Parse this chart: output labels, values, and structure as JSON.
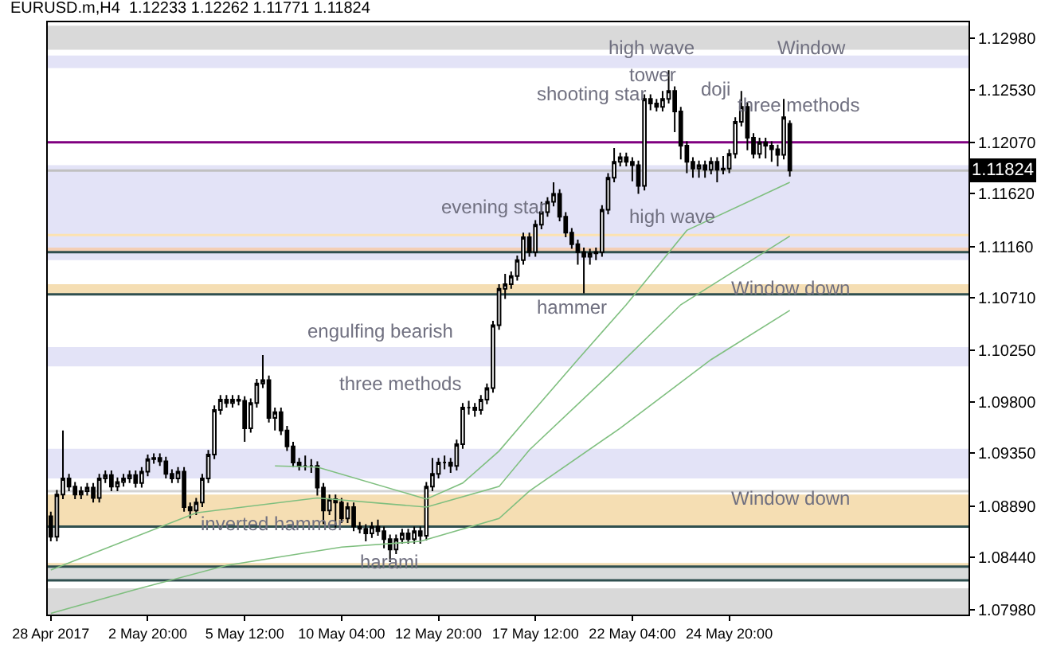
{
  "chart_data": {
    "type": "candlestick",
    "title": "EURUSD.m,H4  1.12233 1.12262 1.11771 1.11824",
    "categories": [
      "28 Apr 2017",
      null,
      null,
      null,
      null,
      null,
      null,
      null,
      null,
      null,
      null,
      null,
      null,
      null,
      null,
      null,
      "2 May 20:00",
      null,
      null,
      null,
      null,
      null,
      null,
      null,
      null,
      null,
      null,
      null,
      null,
      null,
      null,
      null,
      "5 May 12:00",
      null,
      null,
      null,
      null,
      null,
      null,
      null,
      null,
      null,
      null,
      null,
      null,
      null,
      null,
      null,
      "10 May 04:00",
      null,
      null,
      null,
      null,
      null,
      null,
      null,
      null,
      null,
      null,
      null,
      null,
      null,
      null,
      null,
      "12 May 20:00",
      null,
      null,
      null,
      null,
      null,
      null,
      null,
      null,
      null,
      null,
      null,
      null,
      null,
      null,
      null,
      "17 May 12:00",
      null,
      null,
      null,
      null,
      null,
      null,
      null,
      null,
      null,
      null,
      null,
      null,
      null,
      null,
      null,
      "22 May 04:00",
      null,
      null,
      null,
      null,
      null,
      null,
      null,
      null,
      null,
      null,
      null,
      null,
      null,
      null,
      null,
      "24 May 20:00",
      null,
      null,
      null,
      null,
      null,
      null,
      null,
      null,
      null,
      null,
      null,
      null,
      null,
      null,
      null,
      null,
      null,
      null,
      null,
      null,
      null,
      null,
      null,
      null,
      null,
      null,
      null,
      null,
      null,
      null,
      null,
      null,
      null,
      null,
      null,
      null,
      null,
      null,
      null
    ],
    "ohlc": [
      [
        1.088,
        1.0884,
        1.0858,
        1.0862
      ],
      [
        1.0862,
        1.0903,
        1.0858,
        1.0899
      ],
      [
        1.0899,
        1.0955,
        1.0895,
        1.0913
      ],
      [
        1.0913,
        1.0917,
        1.0902,
        1.0906
      ],
      [
        1.0906,
        1.091,
        1.0895,
        1.0899
      ],
      [
        1.0899,
        1.0906,
        1.0895,
        1.0902
      ],
      [
        1.0902,
        1.0909,
        1.0898,
        1.0905
      ],
      [
        1.0905,
        1.0909,
        1.0892,
        1.0896
      ],
      [
        1.0896,
        1.0917,
        1.0892,
        1.0913
      ],
      [
        1.0913,
        1.092,
        1.0909,
        1.0916
      ],
      [
        1.0916,
        1.092,
        1.0902,
        1.0906
      ],
      [
        1.0906,
        1.0914,
        1.0902,
        1.091
      ],
      [
        1.091,
        1.0917,
        1.0906,
        1.0913
      ],
      [
        1.0913,
        1.092,
        1.0909,
        1.0916
      ],
      [
        1.0916,
        1.092,
        1.0905,
        1.0909
      ],
      [
        1.0909,
        1.0923,
        1.0905,
        1.0919
      ],
      [
        1.0919,
        1.0934,
        1.0915,
        1.093
      ],
      [
        1.093,
        1.0935,
        1.0926,
        1.0931
      ],
      [
        1.0931,
        1.0935,
        1.0924,
        1.0928
      ],
      [
        1.0928,
        1.0932,
        1.0913,
        1.0917
      ],
      [
        1.0917,
        1.0921,
        1.0909,
        1.0913
      ],
      [
        1.0913,
        1.0923,
        1.0909,
        1.0919
      ],
      [
        1.0919,
        1.0923,
        1.0884,
        1.0888
      ],
      [
        1.0888,
        1.0892,
        1.0878,
        1.0885
      ],
      [
        1.0885,
        1.0896,
        1.0881,
        1.0892
      ],
      [
        1.0892,
        1.0917,
        1.0888,
        1.0913
      ],
      [
        1.0913,
        1.0938,
        1.0909,
        1.0934
      ],
      [
        1.0934,
        1.0977,
        1.093,
        1.0973
      ],
      [
        1.0973,
        1.0986,
        1.0969,
        1.0982
      ],
      [
        1.0982,
        1.0986,
        1.0975,
        1.0979
      ],
      [
        1.0979,
        1.0986,
        1.0975,
        1.0982
      ],
      [
        1.0982,
        1.0986,
        1.0977,
        1.0981
      ],
      [
        1.0981,
        1.0985,
        1.0945,
        1.0957
      ],
      [
        1.0957,
        1.0983,
        1.0953,
        1.0979
      ],
      [
        1.0979,
        1.1,
        1.0975,
        1.0996
      ],
      [
        1.0996,
        1.1021,
        1.0992,
        1.0999
      ],
      [
        1.0999,
        1.1003,
        1.0962,
        1.0966
      ],
      [
        1.0966,
        1.0975,
        1.0955,
        1.0971
      ],
      [
        1.0971,
        1.0975,
        1.0951,
        1.0955
      ],
      [
        1.0955,
        1.0959,
        1.0937,
        1.0941
      ],
      [
        1.0941,
        1.0945,
        1.0923,
        1.0927
      ],
      [
        1.0927,
        1.0931,
        1.092,
        1.0924
      ],
      [
        1.0924,
        1.0933,
        1.092,
        1.0924
      ],
      [
        1.0924,
        1.093,
        1.0918,
        1.0924
      ],
      [
        1.0924,
        1.0928,
        1.0898,
        1.0905
      ],
      [
        1.0905,
        1.0909,
        1.0873,
        1.0885
      ],
      [
        1.0885,
        1.0899,
        1.0881,
        1.0895
      ],
      [
        1.0895,
        1.0899,
        1.087,
        1.0892
      ],
      [
        1.0892,
        1.0896,
        1.0874,
        1.0878
      ],
      [
        1.0878,
        1.0892,
        1.0874,
        1.0888
      ],
      [
        1.0888,
        1.0892,
        1.0867,
        1.0871
      ],
      [
        1.0871,
        1.0875,
        1.0865,
        1.0869
      ],
      [
        1.0869,
        1.0873,
        1.0858,
        1.0865
      ],
      [
        1.0865,
        1.0875,
        1.0861,
        1.0871
      ],
      [
        1.0871,
        1.0877,
        1.0863,
        1.0867
      ],
      [
        1.0867,
        1.0871,
        1.0852,
        1.086
      ],
      [
        1.086,
        1.0864,
        1.084,
        1.0851
      ],
      [
        1.0851,
        1.0864,
        1.0847,
        1.086
      ],
      [
        1.086,
        1.0869,
        1.0856,
        1.0865
      ],
      [
        1.0865,
        1.0869,
        1.0856,
        1.086
      ],
      [
        1.086,
        1.0871,
        1.0856,
        1.0867
      ],
      [
        1.0867,
        1.0871,
        1.0856,
        1.0863
      ],
      [
        1.0863,
        1.091,
        1.0859,
        1.0906
      ],
      [
        1.0906,
        1.0931,
        1.0902,
        1.0917
      ],
      [
        1.0917,
        1.0931,
        1.0913,
        1.0927
      ],
      [
        1.0927,
        1.0933,
        1.0921,
        1.0927
      ],
      [
        1.0927,
        1.0931,
        1.0918,
        1.0924
      ],
      [
        1.0924,
        1.0947,
        1.092,
        1.0943
      ],
      [
        1.0943,
        1.0979,
        1.0939,
        1.0975
      ],
      [
        1.0975,
        1.0981,
        1.0969,
        1.0975
      ],
      [
        1.0975,
        1.0979,
        1.0967,
        1.0973
      ],
      [
        1.0973,
        1.0986,
        1.0969,
        1.0982
      ],
      [
        1.0982,
        1.0996,
        1.0978,
        1.0992
      ],
      [
        1.0992,
        1.1051,
        1.0988,
        1.1047
      ],
      [
        1.1047,
        1.1083,
        1.1043,
        1.1079
      ],
      [
        1.1079,
        1.1092,
        1.107,
        1.1083
      ],
      [
        1.1083,
        1.1094,
        1.1079,
        1.109
      ],
      [
        1.109,
        1.1108,
        1.1086,
        1.1104
      ],
      [
        1.1104,
        1.1128,
        1.11,
        1.1124
      ],
      [
        1.1124,
        1.1128,
        1.1107,
        1.1111
      ],
      [
        1.1111,
        1.1139,
        1.1107,
        1.1135
      ],
      [
        1.1135,
        1.1155,
        1.1131,
        1.1146
      ],
      [
        1.1146,
        1.1159,
        1.1142,
        1.1155
      ],
      [
        1.1155,
        1.1172,
        1.1151,
        1.1162
      ],
      [
        1.1162,
        1.1166,
        1.1138,
        1.1142
      ],
      [
        1.1142,
        1.1146,
        1.1124,
        1.1128
      ],
      [
        1.1128,
        1.1132,
        1.1114,
        1.1118
      ],
      [
        1.1118,
        1.1122,
        1.11,
        1.1111
      ],
      [
        1.1111,
        1.1115,
        1.1075,
        1.1107
      ],
      [
        1.1107,
        1.1114,
        1.11,
        1.111
      ],
      [
        1.111,
        1.1115,
        1.1104,
        1.1111
      ],
      [
        1.1111,
        1.1152,
        1.1107,
        1.1148
      ],
      [
        1.1148,
        1.118,
        1.1144,
        1.1176
      ],
      [
        1.1176,
        1.1202,
        1.1172,
        1.119
      ],
      [
        1.119,
        1.1198,
        1.1186,
        1.1194
      ],
      [
        1.1194,
        1.1198,
        1.1186,
        1.119
      ],
      [
        1.119,
        1.1194,
        1.1173,
        1.1187
      ],
      [
        1.1187,
        1.1191,
        1.1162,
        1.1169
      ],
      [
        1.1169,
        1.1249,
        1.1165,
        1.1245
      ],
      [
        1.1245,
        1.1249,
        1.1235,
        1.1241
      ],
      [
        1.1241,
        1.1245,
        1.1234,
        1.1238
      ],
      [
        1.1238,
        1.1252,
        1.1234,
        1.1245
      ],
      [
        1.1245,
        1.127,
        1.1241,
        1.1252
      ],
      [
        1.1252,
        1.1256,
        1.1216,
        1.1234
      ],
      [
        1.1234,
        1.1238,
        1.1192,
        1.1204
      ],
      [
        1.1204,
        1.1208,
        1.118,
        1.119
      ],
      [
        1.119,
        1.1194,
        1.1176,
        1.1184
      ],
      [
        1.1184,
        1.1191,
        1.1176,
        1.1187
      ],
      [
        1.1187,
        1.1191,
        1.1176,
        1.1183
      ],
      [
        1.1183,
        1.1194,
        1.1179,
        1.119
      ],
      [
        1.119,
        1.1194,
        1.1172,
        1.1183
      ],
      [
        1.1183,
        1.1195,
        1.1179,
        1.1184
      ],
      [
        1.1184,
        1.1201,
        1.118,
        1.1197
      ],
      [
        1.1197,
        1.1229,
        1.1193,
        1.1225
      ],
      [
        1.1225,
        1.1252,
        1.1221,
        1.1238
      ],
      [
        1.1238,
        1.1242,
        1.12,
        1.1211
      ],
      [
        1.1211,
        1.1215,
        1.1193,
        1.1197
      ],
      [
        1.1197,
        1.1211,
        1.1193,
        1.1207
      ],
      [
        1.1207,
        1.1211,
        1.1193,
        1.1204
      ],
      [
        1.1204,
        1.1208,
        1.119,
        1.1201
      ],
      [
        1.1201,
        1.1205,
        1.1186,
        1.1196
      ],
      [
        1.1196,
        1.1245,
        1.1192,
        1.1229
      ],
      [
        1.12233,
        1.12262,
        1.11771,
        1.11824
      ],
      null,
      null,
      null,
      null,
      null,
      null,
      null,
      null,
      null,
      null,
      null,
      null,
      null,
      null,
      null,
      null,
      null,
      null,
      null,
      null,
      null,
      null,
      null,
      null,
      null,
      null,
      null,
      null,
      null
    ],
    "series": [
      {
        "type": "line",
        "color": "#7fbf7f",
        "values": [
          null,
          null,
          null,
          null,
          null,
          null,
          null,
          null,
          null,
          null,
          null,
          null,
          null,
          null,
          null,
          null,
          null,
          null,
          null,
          null,
          null,
          null,
          null,
          null,
          null,
          null,
          null,
          null,
          null,
          null,
          null,
          null,
          null,
          null,
          null,
          null,
          null,
          1.0924,
          null,
          null,
          null,
          null,
          null,
          null,
          1.0923,
          null,
          null,
          null,
          null,
          null,
          null,
          null,
          null,
          null,
          null,
          null,
          null,
          null,
          null,
          null,
          null,
          null,
          1.0895,
          null,
          null,
          null,
          null,
          null,
          1.0909,
          null,
          null,
          null,
          null,
          null,
          1.0937,
          null,
          null,
          null,
          null,
          1.0968,
          null,
          null,
          null,
          null,
          null,
          null,
          null,
          1.1017,
          null,
          null,
          null,
          null,
          null,
          null,
          null,
          1.1065,
          null,
          null,
          null,
          null,
          null,
          null,
          null,
          null,
          null,
          1.113,
          null,
          null,
          null,
          null,
          null,
          null,
          null,
          null,
          null,
          null,
          null,
          null,
          null,
          null,
          null,
          null,
          1.1172,
          null,
          null,
          null,
          null,
          null,
          null,
          null,
          null,
          null,
          null,
          null,
          null,
          null,
          null,
          null,
          null,
          null,
          null,
          null,
          null,
          null,
          null,
          null,
          null,
          null,
          null,
          null,
          null,
          null
        ]
      },
      {
        "type": "line",
        "color": "#7fbf7f",
        "values": [
          1.0833,
          null,
          null,
          null,
          null,
          null,
          null,
          null,
          null,
          null,
          null,
          null,
          null,
          null,
          null,
          null,
          null,
          null,
          null,
          null,
          null,
          null,
          null,
          null,
          1.0883,
          null,
          null,
          null,
          null,
          null,
          null,
          null,
          null,
          null,
          null,
          null,
          null,
          null,
          null,
          null,
          null,
          null,
          null,
          null,
          1.0896,
          null,
          null,
          null,
          null,
          null,
          null,
          null,
          null,
          null,
          null,
          null,
          null,
          null,
          null,
          null,
          null,
          null,
          1.0888,
          null,
          null,
          null,
          null,
          null,
          null,
          null,
          null,
          null,
          null,
          null,
          1.0906,
          null,
          null,
          null,
          null,
          1.0938,
          null,
          null,
          null,
          null,
          null,
          null,
          null,
          null,
          null,
          null,
          null,
          null,
          1.1003,
          null,
          null,
          null,
          null,
          null,
          null,
          null,
          null,
          null,
          null,
          null,
          1.1065,
          null,
          null,
          null,
          null,
          null,
          null,
          null,
          null,
          null,
          null,
          null,
          null,
          null,
          null,
          null,
          null,
          null,
          1.1125,
          null,
          null,
          null,
          null,
          null,
          null,
          null,
          null,
          null,
          null,
          null,
          null,
          null,
          null,
          null,
          null,
          null,
          null,
          null,
          null,
          null,
          null,
          null,
          null,
          null,
          null,
          null,
          null,
          null
        ]
      },
      {
        "type": "line",
        "color": "#7fbf7f",
        "values": [
          1.0795,
          null,
          null,
          null,
          null,
          null,
          null,
          null,
          null,
          null,
          null,
          null,
          null,
          null,
          1.0816,
          null,
          null,
          null,
          null,
          null,
          null,
          null,
          null,
          null,
          null,
          null,
          null,
          null,
          null,
          1.0837,
          null,
          null,
          null,
          null,
          null,
          null,
          null,
          null,
          null,
          null,
          null,
          null,
          null,
          null,
          null,
          null,
          null,
          null,
          1.0853,
          null,
          null,
          null,
          null,
          null,
          null,
          null,
          null,
          null,
          null,
          null,
          null,
          1.0858,
          null,
          null,
          null,
          null,
          null,
          null,
          null,
          null,
          null,
          null,
          null,
          null,
          1.0878,
          null,
          null,
          null,
          null,
          1.0902,
          null,
          null,
          null,
          null,
          null,
          null,
          null,
          null,
          null,
          null,
          null,
          null,
          null,
          null,
          1.0957,
          null,
          null,
          null,
          null,
          null,
          null,
          null,
          null,
          null,
          null,
          null,
          null,
          null,
          null,
          1.1017,
          null,
          null,
          null,
          null,
          null,
          null,
          null,
          null,
          null,
          null,
          null,
          null,
          1.106,
          null,
          null,
          null,
          null,
          null,
          null,
          null,
          null,
          null,
          null,
          null,
          null,
          null,
          null,
          null,
          null,
          null,
          null,
          null,
          null,
          null,
          null,
          null,
          null,
          null,
          null,
          null,
          null,
          null
        ]
      }
    ],
    "ylim": [
      1.0794,
      1.1312
    ],
    "yticks": [
      {
        "value": 1.0798,
        "label": "1.07980"
      },
      {
        "value": 1.0844,
        "label": "1.08440"
      },
      {
        "value": 1.0889,
        "label": "1.08890"
      },
      {
        "value": 1.0935,
        "label": "1.09350"
      },
      {
        "value": 1.098,
        "label": "1.09800"
      },
      {
        "value": 1.1025,
        "label": "1.10250"
      },
      {
        "value": 1.1071,
        "label": "1.10710"
      },
      {
        "value": 1.1116,
        "label": "1.11160"
      },
      {
        "value": 1.1162,
        "label": "1.11620"
      },
      {
        "value": 1.1207,
        "label": "1.12070"
      },
      {
        "value": 1.1253,
        "label": "1.12530"
      },
      {
        "value": 1.1298,
        "label": "1.12980"
      }
    ],
    "bands": [
      {
        "axis": "y",
        "from": 1.1288,
        "to": 1.1309,
        "color": "#d9d9d9"
      },
      {
        "axis": "y",
        "from": 1.1272,
        "to": 1.1283,
        "color": "#e3e3f7"
      },
      {
        "axis": "y",
        "from": 1.1104,
        "to": 1.1187,
        "color": "#e3e3f7"
      },
      {
        "axis": "y",
        "from": 1.1111,
        "to": 1.1115,
        "color": "#f4cfb6"
      },
      {
        "axis": "y",
        "from": 1.1074,
        "to": 1.1083,
        "color": "#f5deb3"
      },
      {
        "axis": "y",
        "from": 1.1011,
        "to": 1.1028,
        "color": "#e3e3f7"
      },
      {
        "axis": "y",
        "from": 1.0913,
        "to": 1.0939,
        "color": "#e3e3f7"
      },
      {
        "axis": "y",
        "from": 1.0871,
        "to": 1.0899,
        "color": "#f5deb3"
      },
      {
        "axis": "y",
        "from": 1.0836,
        "to": 1.0839,
        "color": "#f5deb3"
      },
      {
        "axis": "y",
        "from": 1.0824,
        "to": 1.0836,
        "color": "#d9dbdb"
      },
      {
        "axis": "y",
        "from": 1.0794,
        "to": 1.0817,
        "color": "#d9d9d9"
      }
    ],
    "ref_lines": [
      {
        "axis": "y",
        "value": 1.1207,
        "color": "#800080"
      },
      {
        "axis": "y",
        "value": 1.11824,
        "label": "1.11824",
        "color": "#c0c0c0"
      },
      {
        "axis": "y",
        "value": 1.1126,
        "color": "#fce2b0"
      },
      {
        "axis": "y",
        "value": 1.1111,
        "color": "#2f4f4f"
      },
      {
        "axis": "y",
        "value": 1.1074,
        "color": "#2f4f4f"
      },
      {
        "axis": "y",
        "value": 1.0902,
        "color": "#d3d3d3"
      },
      {
        "axis": "y",
        "value": 1.0871,
        "color": "#2f4f4f"
      },
      {
        "axis": "y",
        "value": 1.0836,
        "color": "#2f4f4f"
      },
      {
        "axis": "y",
        "value": 1.0824,
        "color": "#2f4f4f"
      }
    ],
    "annotations": [
      "high wave",
      "Window",
      "tower",
      "shooting star",
      "doji",
      "three methods",
      "evening star",
      "high wave",
      "Window down",
      "hammer",
      "engulfing bearish",
      "three methods",
      "Window down",
      "inverted hammer",
      "harami"
    ]
  }
}
